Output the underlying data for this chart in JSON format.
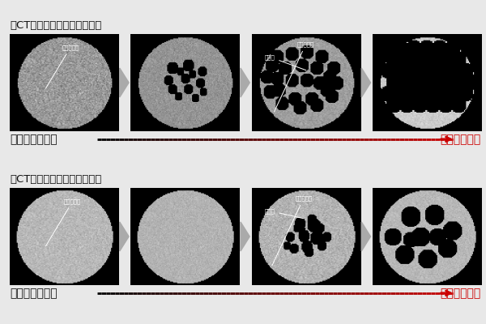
{
  "background_color": "#e8e8e8",
  "title_text": "＜CTによるゴムの破壊観察＞",
  "title_fontsize": 9.5,
  "label_left": "伸長応力　なし",
  "label_right": "伸長応力　大",
  "label_fontsize": 10,
  "label_color_left": "#111111",
  "label_color_right": "#cc0000",
  "arrow_color_tri": "#999999",
  "fig_width": 6.0,
  "fig_height": 4.0
}
